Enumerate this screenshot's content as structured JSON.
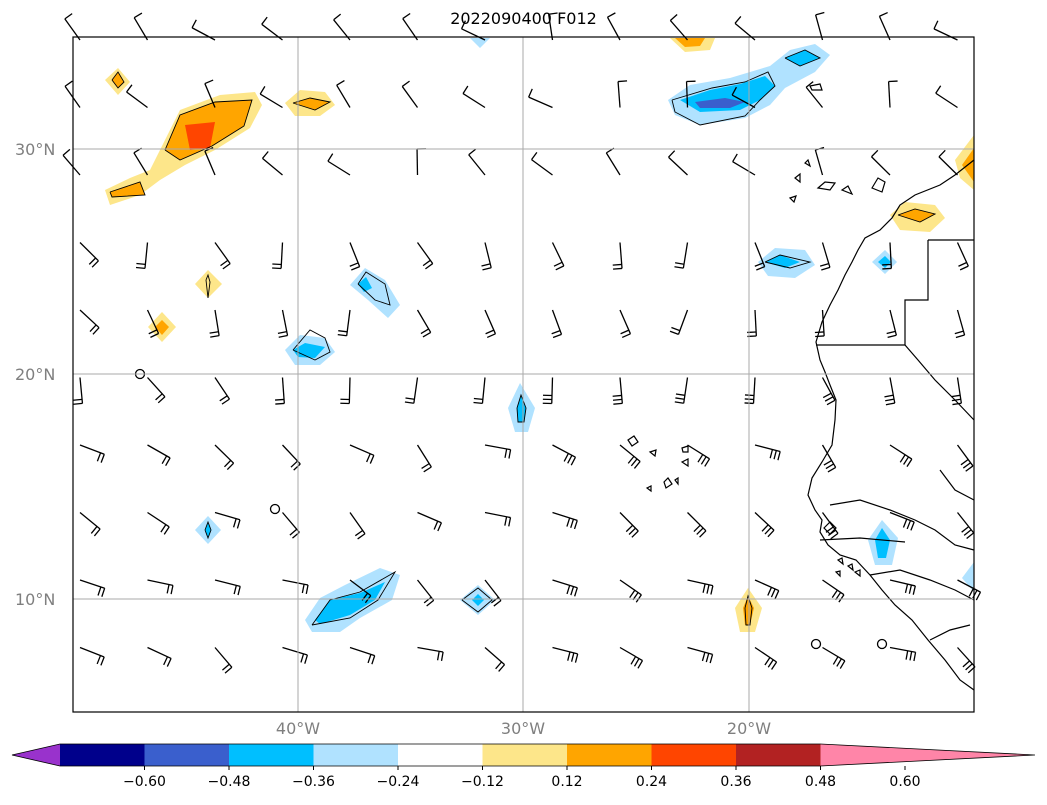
{
  "title": "2022090400 F012",
  "lat_labels": [
    "30°N",
    "20°N",
    "10°N"
  ],
  "lon_labels": [
    "40°W",
    "30°W",
    "20°W"
  ],
  "colorbar": {
    "ticks": [
      "−0.60",
      "−0.48",
      "−0.36",
      "−0.24",
      "−0.12",
      "0.12",
      "0.24",
      "0.36",
      "0.48",
      "0.60"
    ],
    "colors": [
      "#9932cc",
      "#00008b",
      "#3a5fcd",
      "#00bfff",
      "#b0e2ff",
      "#ffffff",
      "#fde68a",
      "#ffa500",
      "#ff4500",
      "#b22222",
      "#ff85a8"
    ]
  },
  "map_extent": {
    "lon_min": -50,
    "lon_max": -10,
    "lat_min": 5,
    "lat_max": 35
  }
}
